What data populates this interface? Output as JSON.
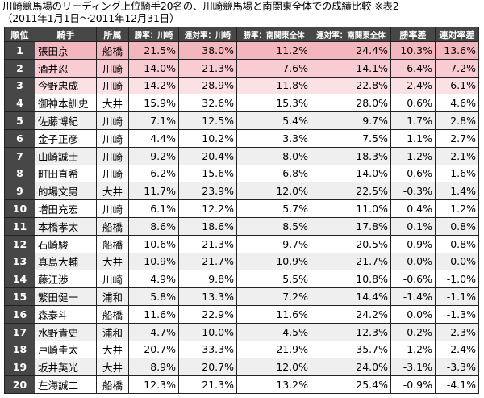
{
  "title": "川崎競馬場のリーディング上位騎手20名の、川崎競馬場と南関東全体での成績比較 ※表2",
  "period": "（2011年1月1日〜2011年12月31日）",
  "colors": {
    "header_bg": "#474747",
    "row1": "#f4b6be",
    "row2": "#f8ccd2",
    "row3": "#fbe0e4",
    "alt": "#efefef"
  },
  "headers": {
    "rank": "順位",
    "jockey": "騎手",
    "affiliation": "所属",
    "win_kawasaki": "勝率：川崎",
    "place_kawasaki": "連対率：川崎",
    "win_south": "勝率：南関東全体",
    "place_south": "連対率：南関東全体",
    "win_diff": "勝率差",
    "place_diff": "連対率差"
  },
  "rows": [
    {
      "rank": "1",
      "jockey": "張田京",
      "affiliation": "船橋",
      "win_kawasaki": "21.5%",
      "place_kawasaki": "38.0%",
      "win_south": "11.2%",
      "place_south": "24.4%",
      "win_diff": "10.3%",
      "place_diff": "13.6%"
    },
    {
      "rank": "2",
      "jockey": "酒井忍",
      "affiliation": "川崎",
      "win_kawasaki": "14.0%",
      "place_kawasaki": "21.3%",
      "win_south": "7.6%",
      "place_south": "14.1%",
      "win_diff": "6.4%",
      "place_diff": "7.2%"
    },
    {
      "rank": "3",
      "jockey": "今野忠成",
      "affiliation": "川崎",
      "win_kawasaki": "14.2%",
      "place_kawasaki": "28.9%",
      "win_south": "11.8%",
      "place_south": "22.8%",
      "win_diff": "2.4%",
      "place_diff": "6.1%"
    },
    {
      "rank": "4",
      "jockey": "御神本訓史",
      "affiliation": "大井",
      "win_kawasaki": "15.9%",
      "place_kawasaki": "32.6%",
      "win_south": "15.3%",
      "place_south": "28.0%",
      "win_diff": "0.6%",
      "place_diff": "4.6%"
    },
    {
      "rank": "5",
      "jockey": "佐藤博紀",
      "affiliation": "川崎",
      "win_kawasaki": "7.1%",
      "place_kawasaki": "12.5%",
      "win_south": "5.4%",
      "place_south": "9.7%",
      "win_diff": "1.7%",
      "place_diff": "2.8%"
    },
    {
      "rank": "6",
      "jockey": "金子正彦",
      "affiliation": "川崎",
      "win_kawasaki": "4.4%",
      "place_kawasaki": "10.2%",
      "win_south": "3.3%",
      "place_south": "7.5%",
      "win_diff": "1.1%",
      "place_diff": "2.7%"
    },
    {
      "rank": "7",
      "jockey": "山崎誠士",
      "affiliation": "川崎",
      "win_kawasaki": "9.2%",
      "place_kawasaki": "20.4%",
      "win_south": "8.0%",
      "place_south": "18.3%",
      "win_diff": "1.2%",
      "place_diff": "2.1%"
    },
    {
      "rank": "8",
      "jockey": "町田直希",
      "affiliation": "川崎",
      "win_kawasaki": "6.2%",
      "place_kawasaki": "15.6%",
      "win_south": "6.8%",
      "place_south": "14.0%",
      "win_diff": "-0.6%",
      "place_diff": "1.6%"
    },
    {
      "rank": "9",
      "jockey": "的場文男",
      "affiliation": "大井",
      "win_kawasaki": "11.7%",
      "place_kawasaki": "23.9%",
      "win_south": "12.0%",
      "place_south": "22.5%",
      "win_diff": "-0.3%",
      "place_diff": "1.4%"
    },
    {
      "rank": "10",
      "jockey": "増田充宏",
      "affiliation": "川崎",
      "win_kawasaki": "6.1%",
      "place_kawasaki": "12.2%",
      "win_south": "5.7%",
      "place_south": "11.0%",
      "win_diff": "0.4%",
      "place_diff": "1.2%"
    },
    {
      "rank": "11",
      "jockey": "本橋孝太",
      "affiliation": "船橋",
      "win_kawasaki": "8.6%",
      "place_kawasaki": "18.6%",
      "win_south": "8.5%",
      "place_south": "17.8%",
      "win_diff": "0.1%",
      "place_diff": "0.8%"
    },
    {
      "rank": "12",
      "jockey": "石崎駿",
      "affiliation": "船橋",
      "win_kawasaki": "10.6%",
      "place_kawasaki": "21.3%",
      "win_south": "9.7%",
      "place_south": "20.5%",
      "win_diff": "0.9%",
      "place_diff": "0.8%"
    },
    {
      "rank": "13",
      "jockey": "真島大輔",
      "affiliation": "大井",
      "win_kawasaki": "10.9%",
      "place_kawasaki": "21.7%",
      "win_south": "10.9%",
      "place_south": "21.7%",
      "win_diff": "0.0%",
      "place_diff": "0.0%"
    },
    {
      "rank": "14",
      "jockey": "藤江渉",
      "affiliation": "川崎",
      "win_kawasaki": "4.9%",
      "place_kawasaki": "9.8%",
      "win_south": "5.5%",
      "place_south": "10.8%",
      "win_diff": "-0.6%",
      "place_diff": "-1.0%"
    },
    {
      "rank": "15",
      "jockey": "繁田健一",
      "affiliation": "浦和",
      "win_kawasaki": "5.8%",
      "place_kawasaki": "13.3%",
      "win_south": "7.2%",
      "place_south": "14.4%",
      "win_diff": "-1.4%",
      "place_diff": "-1.1%"
    },
    {
      "rank": "16",
      "jockey": "森泰斗",
      "affiliation": "船橋",
      "win_kawasaki": "11.6%",
      "place_kawasaki": "22.9%",
      "win_south": "11.6%",
      "place_south": "24.2%",
      "win_diff": "0.0%",
      "place_diff": "-1.3%"
    },
    {
      "rank": "17",
      "jockey": "水野貴史",
      "affiliation": "浦和",
      "win_kawasaki": "4.7%",
      "place_kawasaki": "10.0%",
      "win_south": "4.5%",
      "place_south": "12.3%",
      "win_diff": "0.2%",
      "place_diff": "-2.3%"
    },
    {
      "rank": "18",
      "jockey": "戸崎圭太",
      "affiliation": "大井",
      "win_kawasaki": "20.7%",
      "place_kawasaki": "33.3%",
      "win_south": "21.9%",
      "place_south": "35.7%",
      "win_diff": "-1.2%",
      "place_diff": "-2.4%"
    },
    {
      "rank": "19",
      "jockey": "坂井英光",
      "affiliation": "大井",
      "win_kawasaki": "8.9%",
      "place_kawasaki": "20.7%",
      "win_south": "12.0%",
      "place_south": "24.0%",
      "win_diff": "-3.1%",
      "place_diff": "-3.3%"
    },
    {
      "rank": "20",
      "jockey": "左海誠二",
      "affiliation": "船橋",
      "win_kawasaki": "12.3%",
      "place_kawasaki": "21.3%",
      "win_south": "13.2%",
      "place_south": "25.4%",
      "win_diff": "-0.9%",
      "place_diff": "-4.1%"
    }
  ]
}
